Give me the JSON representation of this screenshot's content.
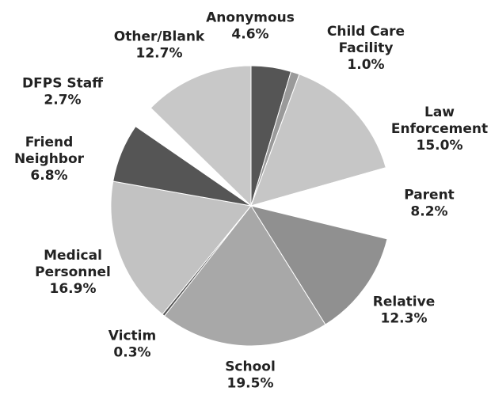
{
  "chart_data": {
    "type": "pie",
    "title": "",
    "start_angle_deg": 0,
    "direction": "clockwise",
    "legend": "none",
    "slices": [
      {
        "label": "Anonymous",
        "value": 4.6,
        "value_label": "4.6%",
        "color": "#555555"
      },
      {
        "label": "Child Care Facility",
        "value": 1.0,
        "value_label": "1.0%",
        "color": "#9a9a9a"
      },
      {
        "label": "Law Enforcement",
        "value": 15.0,
        "value_label": "15.0%",
        "color": "#c6c6c6"
      },
      {
        "label": "Parent",
        "value": 8.2,
        "value_label": "8.2%",
        "color": "#ffffff"
      },
      {
        "label": "Relative",
        "value": 12.3,
        "value_label": "12.3%",
        "color": "#909090"
      },
      {
        "label": "School",
        "value": 19.5,
        "value_label": "19.5%",
        "color": "#a8a8a8"
      },
      {
        "label": "Victim",
        "value": 0.3,
        "value_label": "0.3%",
        "color": "#555555"
      },
      {
        "label": "Medical Personnel",
        "value": 16.9,
        "value_label": "16.9%",
        "color": "#c2c2c2"
      },
      {
        "label": "Friend Neighbor",
        "value": 6.8,
        "value_label": "6.8%",
        "color": "#555555"
      },
      {
        "label": "DFPS Staff",
        "value": 2.7,
        "value_label": "2.7%",
        "color": "#ffffff"
      },
      {
        "label": "Other/Blank",
        "value": 12.7,
        "value_label": "12.7%",
        "color": "#c8c8c8"
      }
    ]
  }
}
